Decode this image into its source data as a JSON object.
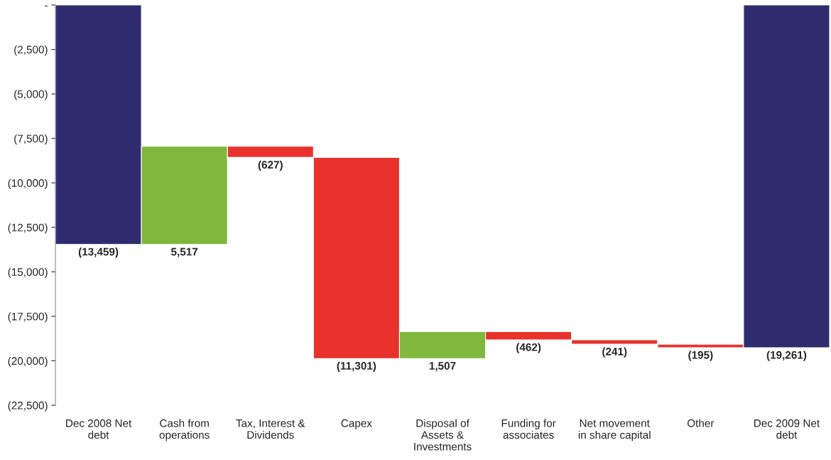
{
  "chart_data": {
    "type": "bar",
    "categories": [
      "Dec 2008 Net\ndebt",
      "Cash from\noperations",
      "Tax, Interest &\nDividends",
      "Capex",
      "Disposal of\nAssets &\nInvestments",
      "Funding for\nassociates",
      "Net movement\nin share capital",
      "Other",
      "Dec 2009 Net\ndebt"
    ],
    "values": [
      -13459,
      5517,
      -627,
      -11301,
      1507,
      -462,
      -241,
      -195,
      -19261
    ],
    "base": [
      0,
      -13459,
      -7942,
      -8569,
      -19870,
      -18363,
      -18825,
      -19066,
      0
    ],
    "colors": [
      "#2e2b6e",
      "#7fb83c",
      "#e8322b",
      "#e8322b",
      "#7fb83c",
      "#e8322b",
      "#e8322b",
      "#e8322b",
      "#2e2b6e"
    ],
    "value_labels": [
      "(13,459)",
      "5,517",
      "(627)",
      "(11,301)",
      "1,507",
      "(462)",
      "(241)",
      "(195)",
      "(19,261)"
    ],
    "ylim": [
      -22500,
      0
    ],
    "yticks": [
      {
        "value": 0,
        "label": "-"
      },
      {
        "value": -2500,
        "label": "(2,500)"
      },
      {
        "value": -5000,
        "label": "(5,000)"
      },
      {
        "value": -7500,
        "label": "(7,500)"
      },
      {
        "value": -10000,
        "label": "(10,000)"
      },
      {
        "value": -12500,
        "label": "(12,500)"
      },
      {
        "value": -15000,
        "label": "(15,000)"
      },
      {
        "value": -17500,
        "label": "(17,500)"
      },
      {
        "value": -20000,
        "label": "(20,000)"
      },
      {
        "value": -22500,
        "label": "(22,500)"
      }
    ],
    "grid": false,
    "legend": false
  }
}
